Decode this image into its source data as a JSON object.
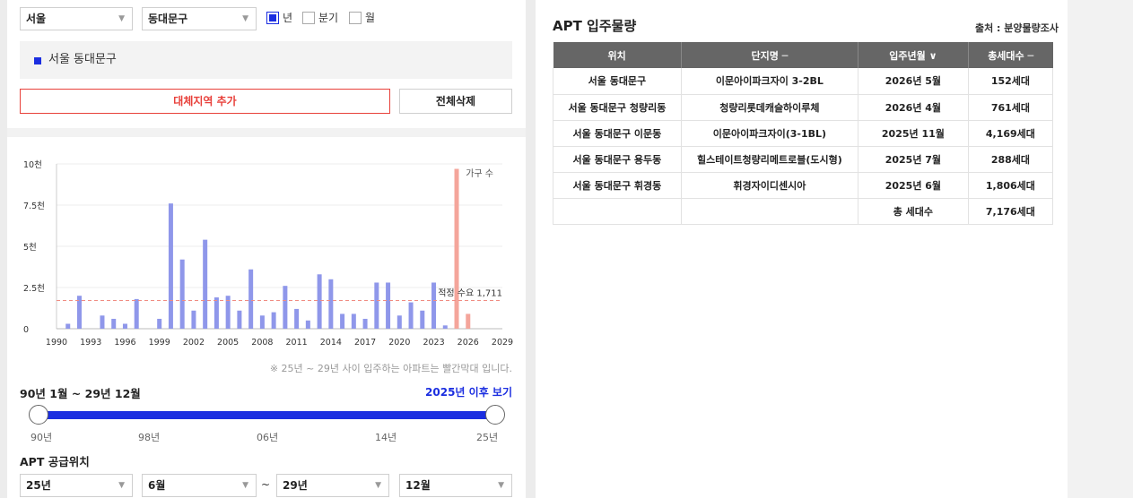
{
  "filters": {
    "city": "서울",
    "district": "동대문구",
    "period_year": "년",
    "period_quarter": "분기",
    "period_month": "월"
  },
  "region_box": {
    "label": "서울 동대문구"
  },
  "buttons": {
    "add_region": "대체지역 추가",
    "clear_all": "전체삭제"
  },
  "chart_data": {
    "type": "bar",
    "x_ticks": [
      "1990",
      "1993",
      "1996",
      "1999",
      "2002",
      "2005",
      "2008",
      "2011",
      "2014",
      "2017",
      "2020",
      "2023",
      "2026",
      "2029"
    ],
    "y_ticks": [
      "0",
      "2.5천",
      "5천",
      "7.5천",
      "10천"
    ],
    "ylim": [
      0,
      10000
    ],
    "xlim": [
      1990,
      2029
    ],
    "legend": "가구 수",
    "reference_line": {
      "value": 1711,
      "label": "적정 수요 1,711"
    },
    "highlight_from": 2025,
    "colors": {
      "past": "#8f97ea",
      "future": "#f4a59b",
      "reference": "#f08c82"
    },
    "series": [
      {
        "x": 1991,
        "y": 300
      },
      {
        "x": 1992,
        "y": 2000
      },
      {
        "x": 1994,
        "y": 800
      },
      {
        "x": 1995,
        "y": 600
      },
      {
        "x": 1996,
        "y": 300
      },
      {
        "x": 1997,
        "y": 1800
      },
      {
        "x": 1999,
        "y": 600
      },
      {
        "x": 2000,
        "y": 7600
      },
      {
        "x": 2001,
        "y": 4200
      },
      {
        "x": 2002,
        "y": 1100
      },
      {
        "x": 2003,
        "y": 5400
      },
      {
        "x": 2004,
        "y": 1900
      },
      {
        "x": 2005,
        "y": 2000
      },
      {
        "x": 2006,
        "y": 1100
      },
      {
        "x": 2007,
        "y": 3600
      },
      {
        "x": 2008,
        "y": 800
      },
      {
        "x": 2009,
        "y": 1000
      },
      {
        "x": 2010,
        "y": 2600
      },
      {
        "x": 2011,
        "y": 1200
      },
      {
        "x": 2012,
        "y": 500
      },
      {
        "x": 2013,
        "y": 3300
      },
      {
        "x": 2014,
        "y": 3000
      },
      {
        "x": 2015,
        "y": 900
      },
      {
        "x": 2016,
        "y": 900
      },
      {
        "x": 2017,
        "y": 600
      },
      {
        "x": 2018,
        "y": 2800
      },
      {
        "x": 2019,
        "y": 2800
      },
      {
        "x": 2020,
        "y": 800
      },
      {
        "x": 2021,
        "y": 1600
      },
      {
        "x": 2022,
        "y": 1100
      },
      {
        "x": 2023,
        "y": 2800
      },
      {
        "x": 2024,
        "y": 200
      },
      {
        "x": 2025,
        "y": 9700
      },
      {
        "x": 2026,
        "y": 900
      }
    ]
  },
  "note": "※ 25년 ~ 29년 사이 입주하는 아파트는 빨간막대 입니다.",
  "range": {
    "title": "90년 1월 ~ 29년 12월",
    "link": "2025년 이후 보기",
    "labels": [
      "90년",
      "98년",
      "06년",
      "14년",
      "25년"
    ]
  },
  "supply": {
    "title": "APT 공급위치",
    "start_year": "25년",
    "start_month": "6월",
    "tilde": "~",
    "end_year": "29년",
    "end_month": "12월"
  },
  "right": {
    "title": "APT 입주물량",
    "source": "출처 : 분양물량조사",
    "headers": [
      "위치",
      "단지명 ─",
      "입주년월 ∨",
      "총세대수 ─"
    ],
    "rows": [
      [
        "서울 동대문구",
        "이문아이파크자이 3-2BL",
        "2026년 5월",
        "152세대"
      ],
      [
        "서울 동대문구 청량리동",
        "청량리롯데캐슬하이루체",
        "2026년 4월",
        "761세대"
      ],
      [
        "서울 동대문구 이문동",
        "이문아이파크자이(3-1BL)",
        "2025년 11월",
        "4,169세대"
      ],
      [
        "서울 동대문구 용두동",
        "힐스테이트청량리메트로블(도시형)",
        "2025년 7월",
        "288세대"
      ],
      [
        "서울 동대문구 휘경동",
        "휘경자이디센시아",
        "2025년 6월",
        "1,806세대"
      ],
      [
        "",
        "",
        "총 세대수",
        "7,176세대"
      ]
    ]
  }
}
